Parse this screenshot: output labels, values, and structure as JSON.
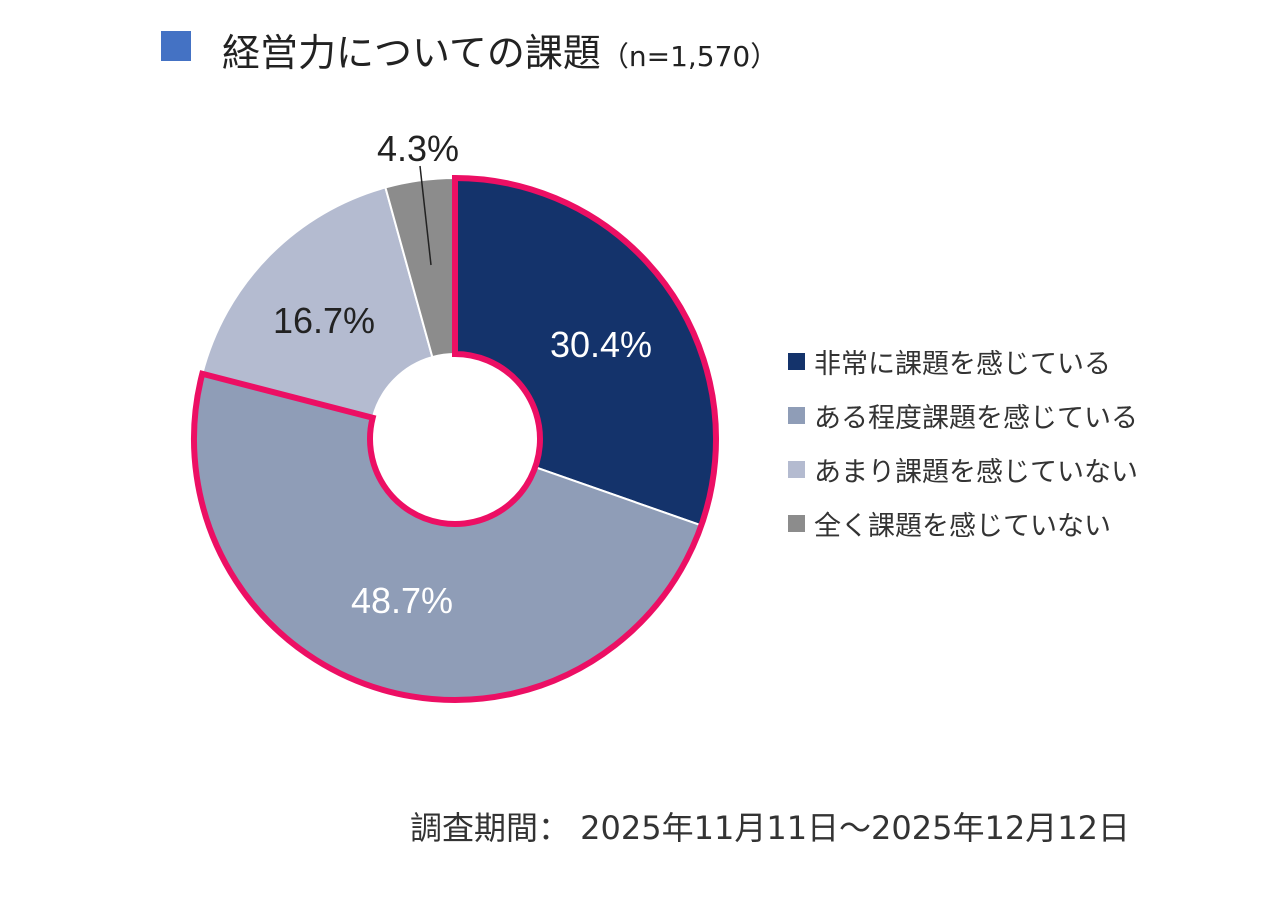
{
  "title": {
    "text": "経営力についての課題",
    "n_label": "（n=1,570）",
    "marker_color": "#4472c4"
  },
  "chart_data": {
    "type": "pie",
    "variant": "donut",
    "title": "経営力についての課題（n=1,570）",
    "categories": [
      "非常に課題を感じている",
      "ある程度課題を感じている",
      "あまり課題を感じていない",
      "全く課題を感じていない"
    ],
    "values": [
      30.4,
      48.7,
      16.7,
      4.3
    ],
    "labels": [
      "30.4%",
      "48.7%",
      "16.7%",
      "4.3%"
    ],
    "colors": [
      "#14336b",
      "#8f9db7",
      "#b4bbd0",
      "#8c8c8c"
    ],
    "label_colors": [
      "#ffffff",
      "#ffffff",
      "#222222",
      "#222222"
    ],
    "highlight": {
      "categories": [
        "非常に課題を感じている",
        "ある程度課題を感じている"
      ],
      "color": "#ec0f64"
    },
    "start": "top",
    "direction": "clockwise",
    "legend_position": "right"
  },
  "footer": {
    "period": "調査期間： 2025年11月11日～2025年12月12日"
  }
}
